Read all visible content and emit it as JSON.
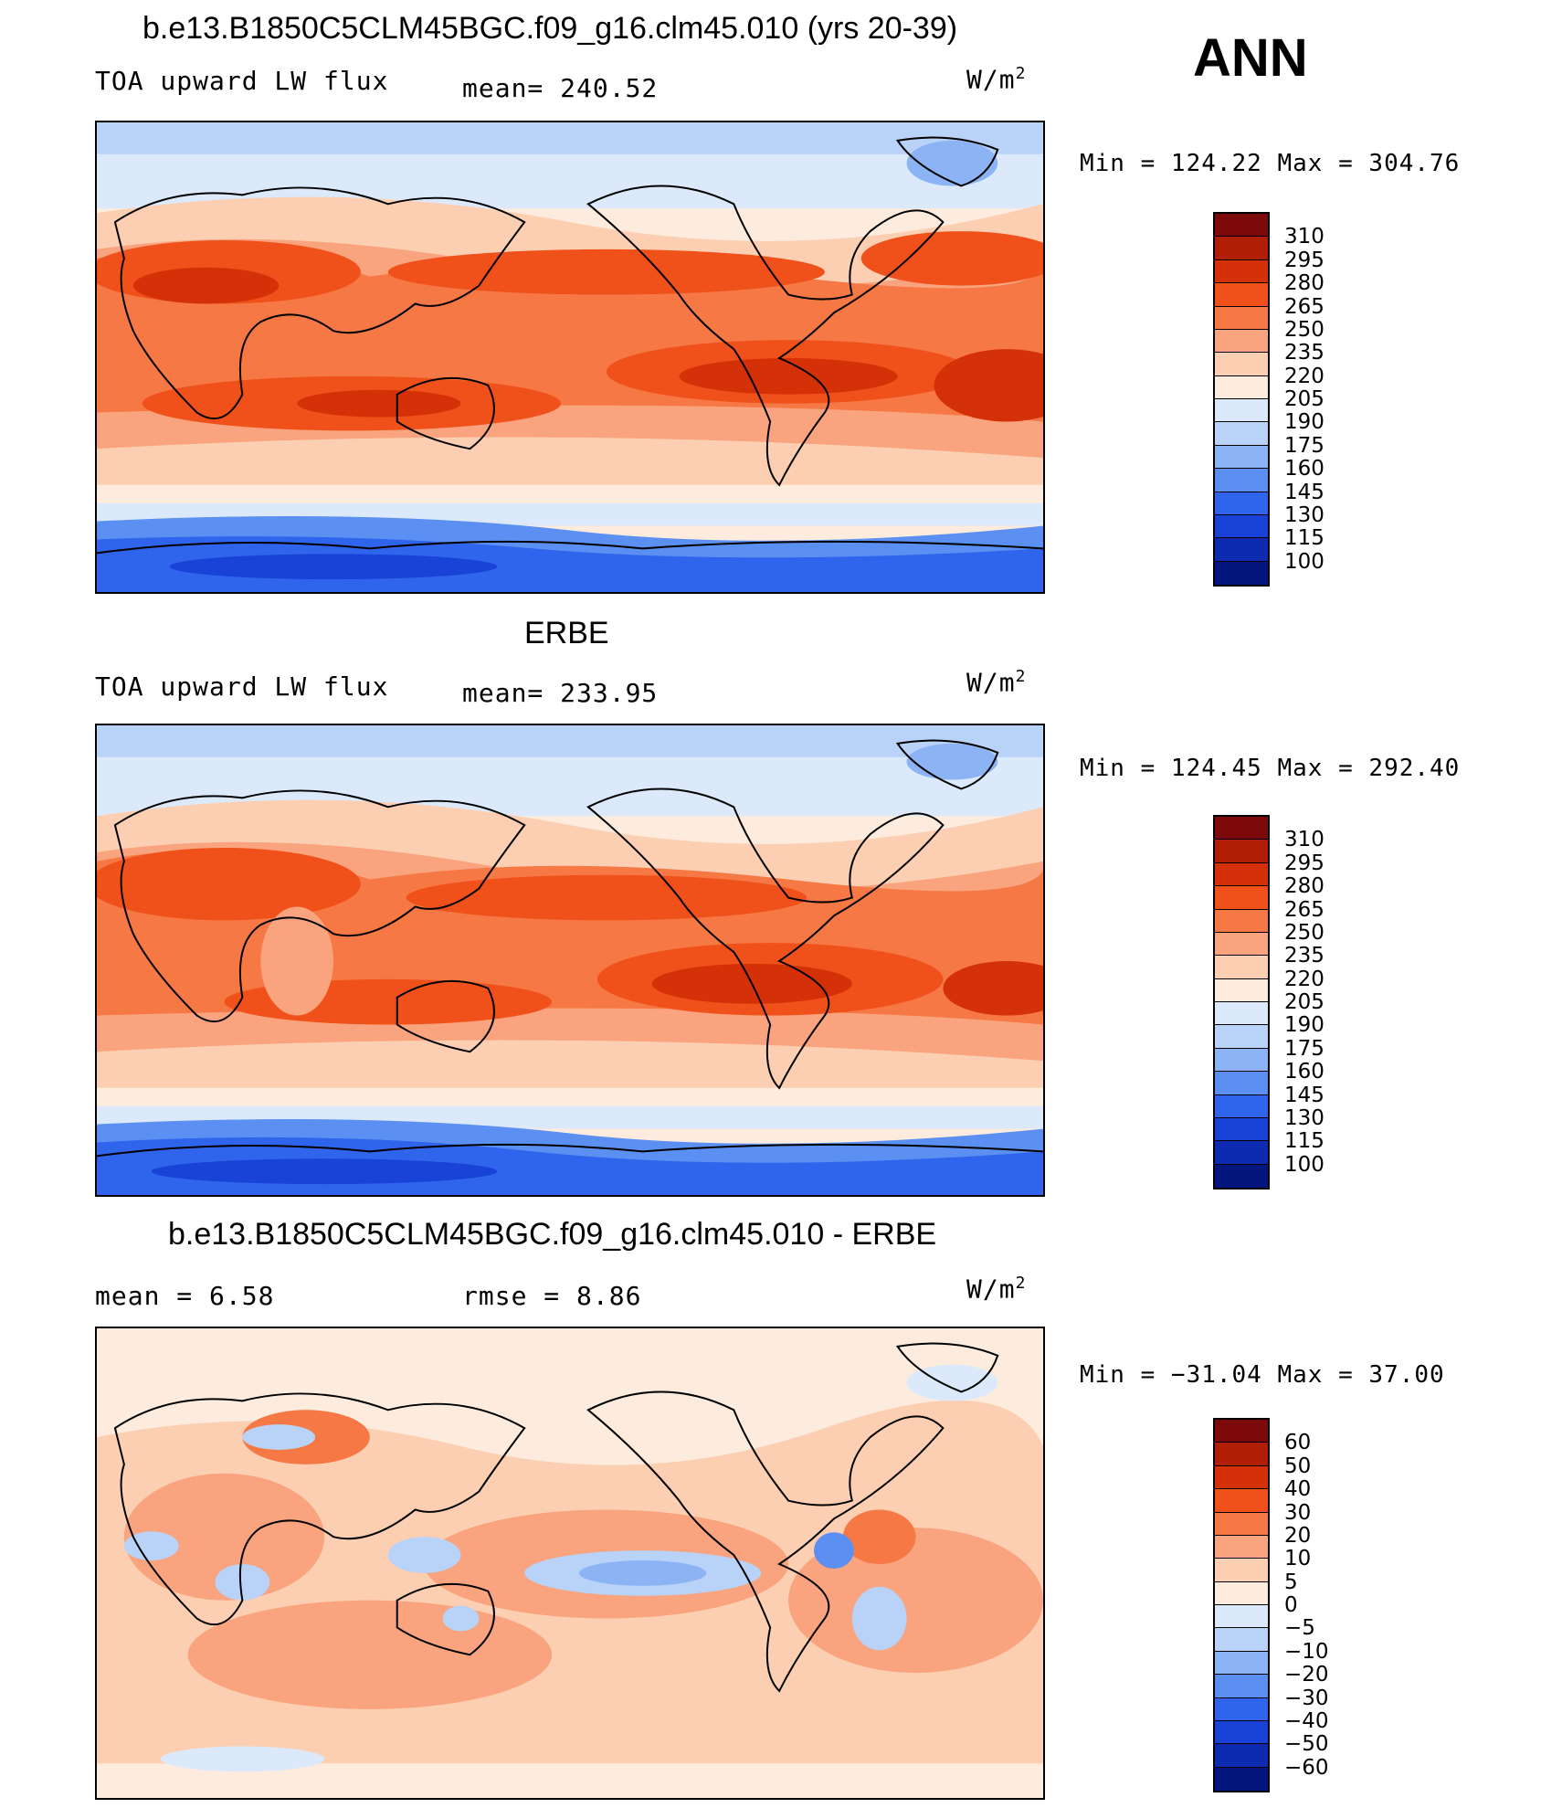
{
  "season": "ANN",
  "units_main": "W/m",
  "units_sup": "2",
  "panels": [
    {
      "title": "b.e13.B1850C5CLM45BGC.f09_g16.clm45.010 (yrs 20-39)",
      "left_label": "TOA upward LW flux",
      "center_label": "mean= 240.52",
      "minmax": "Min = 124.22 Max = 304.76",
      "levels": [
        "310",
        "295",
        "280",
        "265",
        "250",
        "235",
        "220",
        "205",
        "190",
        "175",
        "160",
        "145",
        "130",
        "115",
        "100"
      ]
    },
    {
      "title": "ERBE",
      "left_label": "TOA upward LW flux",
      "center_label": "mean= 233.95",
      "minmax": "Min = 124.45 Max = 292.40",
      "levels": [
        "310",
        "295",
        "280",
        "265",
        "250",
        "235",
        "220",
        "205",
        "190",
        "175",
        "160",
        "145",
        "130",
        "115",
        "100"
      ]
    },
    {
      "title": "b.e13.B1850C5CLM45BGC.f09_g16.clm45.010 - ERBE",
      "left_label": "mean =    6.58",
      "center_label": "rmse =    8.86",
      "minmax": "Min = −31.04 Max =  37.00",
      "levels": [
        "60",
        "50",
        "40",
        "30",
        "20",
        "10",
        "5",
        "0",
        "−5",
        "−10",
        "−20",
        "−30",
        "−40",
        "−50",
        "−60"
      ]
    }
  ],
  "colors": {
    "abs": [
      "#7d0a0a",
      "#b01e05",
      "#d43108",
      "#f0511a",
      "#f57845",
      "#f9a47e",
      "#fccfb2",
      "#fdecde",
      "#dbe9fa",
      "#b8d2f8",
      "#8cb4f5",
      "#5b90f2",
      "#2f64ec",
      "#1943d6",
      "#0c2bb0",
      "#04157d"
    ],
    "diff": [
      "#7d0a0a",
      "#b01e05",
      "#d43108",
      "#f0511a",
      "#f57845",
      "#f9a47e",
      "#fccfb2",
      "#fdecde",
      "#dbe9fa",
      "#b8d2f8",
      "#8cb4f5",
      "#5b90f2",
      "#2f64ec",
      "#1943d6",
      "#0c2bb0",
      "#04157d"
    ]
  }
}
